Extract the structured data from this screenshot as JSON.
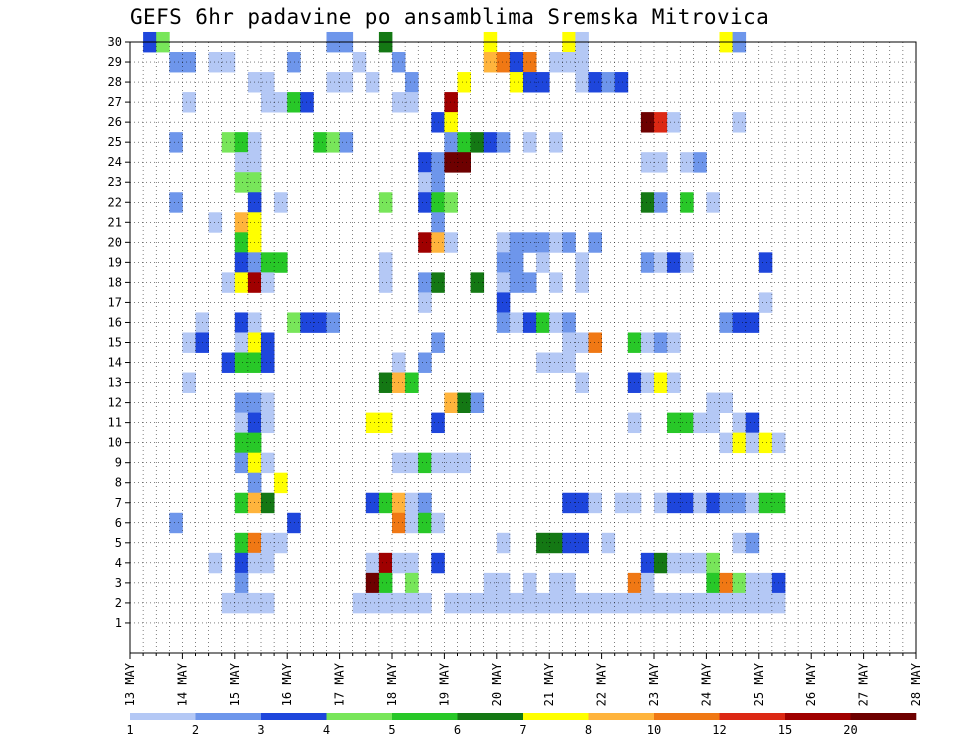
{
  "page": {
    "title": "GEFS 6hr padavine po ansamblima Sremska Mitrovica"
  },
  "chart_data": {
    "type": "heatmap",
    "title": "GEFS 6hr padavine po ansamblima Sremska Mitrovica",
    "x_tick_labels": [
      "13 MAY",
      "14 MAY",
      "15 MAY",
      "16 MAY",
      "17 MAY",
      "18 MAY",
      "19 MAY",
      "20 MAY",
      "21 MAY",
      "22 MAY",
      "23 MAY",
      "24 MAY",
      "25 MAY",
      "26 MAY",
      "27 MAY",
      "28 MAY"
    ],
    "y_tick_labels": [
      "1",
      "2",
      "3",
      "4",
      "5",
      "6",
      "7",
      "8",
      "9",
      "10",
      "11",
      "12",
      "13",
      "14",
      "15",
      "16",
      "17",
      "18",
      "19",
      "20",
      "21",
      "22",
      "23",
      "24",
      "25",
      "26",
      "27",
      "28",
      "29",
      "30"
    ],
    "y_range": [
      0,
      30
    ],
    "time_steps_per_day": 4,
    "time_start_label": "13 MAY",
    "time_end_label": "28 MAY",
    "grid": true,
    "colorbar": {
      "position": "bottom",
      "labels": [
        "1",
        "2",
        "3",
        "4",
        "5",
        "6",
        "7",
        "8",
        "10",
        "12",
        "15",
        "20"
      ],
      "colors": [
        "#b4c8f5",
        "#6e96eb",
        "#1e46dc",
        "#78e65a",
        "#28c828",
        "#147814",
        "#ffff00",
        "#ffb43c",
        "#f07814",
        "#dc2814",
        "#a00000",
        "#6e0000"
      ]
    },
    "member_count": 30,
    "cells": [
      [
        1,
        "30",
        3
      ],
      [
        2,
        "30",
        4
      ],
      [
        15,
        "30",
        2
      ],
      [
        16,
        "30",
        2
      ],
      [
        19,
        "30",
        6
      ],
      [
        27,
        "30",
        7
      ],
      [
        33,
        "30",
        7
      ],
      [
        34,
        "30",
        1
      ],
      [
        45,
        "30",
        7
      ],
      [
        46,
        "30",
        2
      ],
      [
        3,
        "29",
        2
      ],
      [
        4,
        "29",
        2
      ],
      [
        6,
        "29",
        1
      ],
      [
        7,
        "29",
        1
      ],
      [
        12,
        "29",
        2
      ],
      [
        17,
        "29",
        1
      ],
      [
        20,
        "29",
        2
      ],
      [
        27,
        "29",
        8
      ],
      [
        28,
        "29",
        9
      ],
      [
        29,
        "29",
        3
      ],
      [
        30,
        "29",
        9
      ],
      [
        32,
        "29",
        1
      ],
      [
        33,
        "29",
        1
      ],
      [
        34,
        "29",
        1
      ],
      [
        9,
        "28",
        1
      ],
      [
        10,
        "28",
        1
      ],
      [
        15,
        "28",
        1
      ],
      [
        16,
        "28",
        1
      ],
      [
        18,
        "28",
        1
      ],
      [
        21,
        "28",
        2
      ],
      [
        25,
        "28",
        7
      ],
      [
        29,
        "28",
        7
      ],
      [
        30,
        "28",
        3
      ],
      [
        31,
        "28",
        3
      ],
      [
        34,
        "28",
        1
      ],
      [
        35,
        "28",
        3
      ],
      [
        36,
        "28",
        2
      ],
      [
        37,
        "28",
        3
      ],
      [
        4,
        "27",
        1
      ],
      [
        10,
        "27",
        1
      ],
      [
        11,
        "27",
        1
      ],
      [
        12,
        "27",
        5
      ],
      [
        13,
        "27",
        3
      ],
      [
        20,
        "27",
        1
      ],
      [
        21,
        "27",
        1
      ],
      [
        24,
        "27",
        11
      ],
      [
        23,
        "26",
        3
      ],
      [
        24,
        "26",
        7
      ],
      [
        39,
        "26",
        12
      ],
      [
        40,
        "26",
        10
      ],
      [
        41,
        "26",
        1
      ],
      [
        46,
        "26",
        1
      ],
      [
        3,
        "25",
        2
      ],
      [
        7,
        "25",
        4
      ],
      [
        8,
        "25",
        5
      ],
      [
        9,
        "25",
        1
      ],
      [
        14,
        "25",
        5
      ],
      [
        15,
        "25",
        4
      ],
      [
        16,
        "25",
        2
      ],
      [
        24,
        "25",
        2
      ],
      [
        25,
        "25",
        5
      ],
      [
        26,
        "25",
        6
      ],
      [
        27,
        "25",
        3
      ],
      [
        28,
        "25",
        2
      ],
      [
        30,
        "25",
        1
      ],
      [
        32,
        "25",
        1
      ],
      [
        8,
        "24",
        1
      ],
      [
        9,
        "24",
        1
      ],
      [
        22,
        "24",
        3
      ],
      [
        23,
        "24",
        2
      ],
      [
        24,
        "24",
        12
      ],
      [
        25,
        "24",
        12
      ],
      [
        39,
        "24",
        1
      ],
      [
        40,
        "24",
        1
      ],
      [
        42,
        "24",
        1
      ],
      [
        43,
        "24",
        2
      ],
      [
        8,
        "23",
        4
      ],
      [
        9,
        "23",
        4
      ],
      [
        22,
        "23",
        1
      ],
      [
        23,
        "23",
        2
      ],
      [
        3,
        "22",
        2
      ],
      [
        9,
        "22",
        3
      ],
      [
        11,
        "22",
        1
      ],
      [
        19,
        "22",
        4
      ],
      [
        22,
        "22",
        3
      ],
      [
        23,
        "22",
        5
      ],
      [
        24,
        "22",
        4
      ],
      [
        39,
        "22",
        6
      ],
      [
        40,
        "22",
        2
      ],
      [
        42,
        "22",
        5
      ],
      [
        44,
        "22",
        1
      ],
      [
        6,
        "21",
        1
      ],
      [
        8,
        "21",
        8
      ],
      [
        9,
        "21",
        7
      ],
      [
        23,
        "21",
        2
      ],
      [
        8,
        "20",
        5
      ],
      [
        9,
        "20",
        7
      ],
      [
        22,
        "20",
        11
      ],
      [
        23,
        "20",
        8
      ],
      [
        24,
        "20",
        1
      ],
      [
        28,
        "20",
        1
      ],
      [
        29,
        "20",
        2
      ],
      [
        30,
        "20",
        2
      ],
      [
        31,
        "20",
        2
      ],
      [
        32,
        "20",
        1
      ],
      [
        33,
        "20",
        2
      ],
      [
        35,
        "20",
        2
      ],
      [
        8,
        "19",
        3
      ],
      [
        9,
        "19",
        2
      ],
      [
        10,
        "19",
        5
      ],
      [
        11,
        "19",
        5
      ],
      [
        19,
        "19",
        1
      ],
      [
        28,
        "19",
        2
      ],
      [
        29,
        "19",
        2
      ],
      [
        31,
        "19",
        1
      ],
      [
        34,
        "19",
        1
      ],
      [
        39,
        "19",
        2
      ],
      [
        40,
        "19",
        1
      ],
      [
        41,
        "19",
        3
      ],
      [
        42,
        "19",
        1
      ],
      [
        48,
        "19",
        3
      ],
      [
        7,
        "18",
        1
      ],
      [
        8,
        "18",
        7
      ],
      [
        9,
        "18",
        11
      ],
      [
        10,
        "18",
        1
      ],
      [
        19,
        "18",
        1
      ],
      [
        22,
        "18",
        2
      ],
      [
        23,
        "18",
        6
      ],
      [
        26,
        "18",
        6
      ],
      [
        28,
        "18",
        1
      ],
      [
        29,
        "18",
        2
      ],
      [
        30,
        "18",
        2
      ],
      [
        32,
        "18",
        1
      ],
      [
        34,
        "18",
        1
      ],
      [
        22,
        "17",
        1
      ],
      [
        28,
        "17",
        3
      ],
      [
        48,
        "17",
        1
      ],
      [
        5,
        "16",
        1
      ],
      [
        8,
        "16",
        3
      ],
      [
        9,
        "16",
        1
      ],
      [
        12,
        "16",
        4
      ],
      [
        13,
        "16",
        3
      ],
      [
        14,
        "16",
        3
      ],
      [
        15,
        "16",
        2
      ],
      [
        28,
        "16",
        2
      ],
      [
        29,
        "16",
        1
      ],
      [
        30,
        "16",
        3
      ],
      [
        31,
        "16",
        5
      ],
      [
        32,
        "16",
        1
      ],
      [
        33,
        "16",
        2
      ],
      [
        45,
        "16",
        2
      ],
      [
        46,
        "16",
        3
      ],
      [
        47,
        "16",
        3
      ],
      [
        4,
        "15",
        1
      ],
      [
        5,
        "15",
        3
      ],
      [
        8,
        "15",
        1
      ],
      [
        9,
        "15",
        7
      ],
      [
        10,
        "15",
        3
      ],
      [
        23,
        "15",
        2
      ],
      [
        33,
        "15",
        1
      ],
      [
        34,
        "15",
        1
      ],
      [
        35,
        "15",
        9
      ],
      [
        38,
        "15",
        5
      ],
      [
        39,
        "15",
        1
      ],
      [
        40,
        "15",
        2
      ],
      [
        41,
        "15",
        1
      ],
      [
        7,
        "14",
        3
      ],
      [
        8,
        "14",
        5
      ],
      [
        9,
        "14",
        5
      ],
      [
        10,
        "14",
        3
      ],
      [
        20,
        "14",
        1
      ],
      [
        22,
        "14",
        2
      ],
      [
        31,
        "14",
        1
      ],
      [
        32,
        "14",
        1
      ],
      [
        33,
        "14",
        1
      ],
      [
        4,
        "13",
        1
      ],
      [
        19,
        "13",
        6
      ],
      [
        20,
        "13",
        8
      ],
      [
        21,
        "13",
        5
      ],
      [
        34,
        "13",
        1
      ],
      [
        38,
        "13",
        3
      ],
      [
        39,
        "13",
        1
      ],
      [
        40,
        "13",
        7
      ],
      [
        41,
        "13",
        1
      ],
      [
        8,
        "12",
        2
      ],
      [
        9,
        "12",
        2
      ],
      [
        10,
        "12",
        1
      ],
      [
        24,
        "12",
        8
      ],
      [
        25,
        "12",
        6
      ],
      [
        26,
        "12",
        2
      ],
      [
        44,
        "12",
        1
      ],
      [
        45,
        "12",
        1
      ],
      [
        8,
        "11",
        1
      ],
      [
        9,
        "11",
        3
      ],
      [
        10,
        "11",
        1
      ],
      [
        18,
        "11",
        7
      ],
      [
        19,
        "11",
        7
      ],
      [
        23,
        "11",
        3
      ],
      [
        38,
        "11",
        1
      ],
      [
        41,
        "11",
        5
      ],
      [
        42,
        "11",
        5
      ],
      [
        43,
        "11",
        1
      ],
      [
        44,
        "11",
        1
      ],
      [
        46,
        "11",
        1
      ],
      [
        47,
        "11",
        3
      ],
      [
        8,
        "10",
        5
      ],
      [
        9,
        "10",
        5
      ],
      [
        45,
        "10",
        1
      ],
      [
        46,
        "10",
        7
      ],
      [
        47,
        "10",
        1
      ],
      [
        48,
        "10",
        7
      ],
      [
        49,
        "10",
        1
      ],
      [
        8,
        "9",
        2
      ],
      [
        9,
        "9",
        7
      ],
      [
        10,
        "9",
        1
      ],
      [
        20,
        "9",
        1
      ],
      [
        21,
        "9",
        1
      ],
      [
        22,
        "9",
        5
      ],
      [
        23,
        "9",
        1
      ],
      [
        24,
        "9",
        1
      ],
      [
        25,
        "9",
        1
      ],
      [
        9,
        "8",
        2
      ],
      [
        11,
        "8",
        7
      ],
      [
        8,
        "7",
        5
      ],
      [
        9,
        "7",
        8
      ],
      [
        10,
        "7",
        6
      ],
      [
        18,
        "7",
        3
      ],
      [
        19,
        "7",
        5
      ],
      [
        20,
        "7",
        8
      ],
      [
        21,
        "7",
        1
      ],
      [
        22,
        "7",
        2
      ],
      [
        33,
        "7",
        3
      ],
      [
        34,
        "7",
        3
      ],
      [
        35,
        "7",
        1
      ],
      [
        37,
        "7",
        1
      ],
      [
        38,
        "7",
        1
      ],
      [
        40,
        "7",
        1
      ],
      [
        41,
        "7",
        3
      ],
      [
        42,
        "7",
        3
      ],
      [
        43,
        "7",
        1
      ],
      [
        44,
        "7",
        3
      ],
      [
        45,
        "7",
        2
      ],
      [
        46,
        "7",
        2
      ],
      [
        47,
        "7",
        1
      ],
      [
        48,
        "7",
        5
      ],
      [
        49,
        "7",
        5
      ],
      [
        3,
        "6",
        2
      ],
      [
        12,
        "6",
        3
      ],
      [
        20,
        "6",
        9
      ],
      [
        21,
        "6",
        1
      ],
      [
        22,
        "6",
        5
      ],
      [
        23,
        "6",
        1
      ],
      [
        8,
        "5",
        5
      ],
      [
        9,
        "5",
        9
      ],
      [
        10,
        "5",
        1
      ],
      [
        11,
        "5",
        1
      ],
      [
        28,
        "5",
        1
      ],
      [
        31,
        "5",
        6
      ],
      [
        32,
        "5",
        6
      ],
      [
        33,
        "5",
        3
      ],
      [
        34,
        "5",
        3
      ],
      [
        36,
        "5",
        1
      ],
      [
        46,
        "5",
        1
      ],
      [
        47,
        "5",
        2
      ],
      [
        6,
        "4",
        1
      ],
      [
        8,
        "4",
        3
      ],
      [
        9,
        "4",
        1
      ],
      [
        10,
        "4",
        1
      ],
      [
        18,
        "4",
        1
      ],
      [
        19,
        "4",
        11
      ],
      [
        20,
        "4",
        1
      ],
      [
        21,
        "4",
        1
      ],
      [
        23,
        "4",
        3
      ],
      [
        39,
        "4",
        3
      ],
      [
        40,
        "4",
        6
      ],
      [
        41,
        "4",
        1
      ],
      [
        42,
        "4",
        1
      ],
      [
        43,
        "4",
        1
      ],
      [
        44,
        "4",
        4
      ],
      [
        8,
        "3",
        2
      ],
      [
        18,
        "3",
        12
      ],
      [
        19,
        "3",
        5
      ],
      [
        21,
        "3",
        4
      ],
      [
        27,
        "3",
        1
      ],
      [
        28,
        "3",
        1
      ],
      [
        30,
        "3",
        1
      ],
      [
        32,
        "3",
        1
      ],
      [
        33,
        "3",
        1
      ],
      [
        38,
        "3",
        9
      ],
      [
        39,
        "3",
        1
      ],
      [
        44,
        "3",
        5
      ],
      [
        45,
        "3",
        9
      ],
      [
        46,
        "3",
        4
      ],
      [
        47,
        "3",
        1
      ],
      [
        48,
        "3",
        1
      ],
      [
        49,
        "3",
        3
      ],
      [
        7,
        "2",
        1
      ],
      [
        8,
        "2",
        1
      ],
      [
        9,
        "2",
        1
      ],
      [
        10,
        "2",
        1
      ],
      [
        17,
        "2",
        1
      ],
      [
        18,
        "2",
        1
      ],
      [
        19,
        "2",
        1
      ],
      [
        20,
        "2",
        1
      ],
      [
        21,
        "2",
        1
      ],
      [
        22,
        "2",
        1
      ],
      [
        24,
        "2",
        1
      ],
      [
        25,
        "2",
        1
      ],
      [
        26,
        "2",
        1
      ],
      [
        27,
        "2",
        1
      ],
      [
        28,
        "2",
        1
      ],
      [
        29,
        "2",
        1
      ],
      [
        30,
        "2",
        1
      ],
      [
        31,
        "2",
        1
      ],
      [
        32,
        "2",
        1
      ],
      [
        33,
        "2",
        1
      ],
      [
        34,
        "2",
        1
      ],
      [
        35,
        "2",
        1
      ],
      [
        36,
        "2",
        1
      ],
      [
        37,
        "2",
        1
      ],
      [
        38,
        "2",
        1
      ],
      [
        39,
        "2",
        1
      ],
      [
        40,
        "2",
        1
      ],
      [
        41,
        "2",
        1
      ],
      [
        42,
        "2",
        1
      ],
      [
        43,
        "2",
        1
      ],
      [
        44,
        "2",
        1
      ],
      [
        45,
        "2",
        1
      ],
      [
        46,
        "2",
        1
      ],
      [
        47,
        "2",
        1
      ],
      [
        48,
        "2",
        1
      ],
      [
        49,
        "2",
        1
      ]
    ]
  }
}
